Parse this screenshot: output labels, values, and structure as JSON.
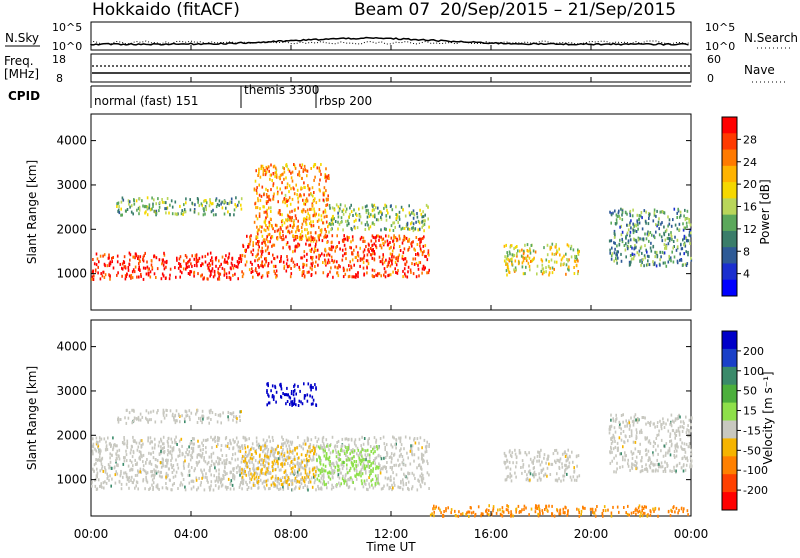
{
  "header": {
    "title": "Hokkaido (fitACF)",
    "beam": "Beam 07",
    "date_range": "20/Sep/2015 – 21/Sep/2015"
  },
  "top_panels": {
    "nsky_label": "N.Sky",
    "nsky_tick_hi": "10^5",
    "nsky_tick_lo": "10^0",
    "nsearch_label": "N.Search",
    "freq_label": "Freq.",
    "freq_unit": "[MHz]",
    "freq_tick_hi": "18",
    "freq_tick_lo": "8",
    "nave_label": "Nave",
    "nave_tick_hi": "60",
    "nave_tick_lo": "0",
    "cpid_label": "CPID",
    "cpid_segments": [
      {
        "label": "normal (fast) 151",
        "start_hour": 0
      },
      {
        "label": "themis 3300",
        "start_hour": 6
      },
      {
        "label": "rbsp 200",
        "start_hour": 9
      }
    ]
  },
  "power_panel": {
    "ylabel": "Slant Range [km]",
    "colorbar_label": "Power [dB]",
    "colorbar_ticks": [
      "28",
      "24",
      "20",
      "16",
      "12",
      "8",
      "4"
    ],
    "colorbar_colors": [
      "#ff0000",
      "#ff3a00",
      "#ff7a00",
      "#ffb300",
      "#f5d800",
      "#b9d65a",
      "#5ba85b",
      "#3a7d6a",
      "#2e5a96",
      "#1b2fcf",
      "#0000ff"
    ]
  },
  "velocity_panel": {
    "ylabel": "Slant Range [km]",
    "colorbar_label": "Velocity [m s⁻¹]",
    "colorbar_ticks": [
      "200",
      "100",
      "50",
      "15",
      "-15",
      "-50",
      "-100",
      "-200"
    ],
    "colorbar_colors": [
      "#0000c8",
      "#1a40c8",
      "#3a8a6a",
      "#4caf3c",
      "#8ee04a",
      "#c8c8c0",
      "#f5b400",
      "#ff8000",
      "#ff4000",
      "#ff0000"
    ],
    "ground_scatter_color": "#c8c8c0"
  },
  "chart_data": {
    "type": "heatmap",
    "x_range_hours": [
      0,
      24
    ],
    "xlabel": "Time UT",
    "x_ticks": [
      "00:00",
      "04:00",
      "08:00",
      "12:00",
      "16:00",
      "20:00",
      "00:00"
    ],
    "y_range_km": [
      180,
      4600
    ],
    "y_ticks": [
      1000,
      2000,
      3000,
      4000
    ],
    "power_scatter_regions": [
      {
        "t0": 0.0,
        "t1": 6.0,
        "r0": 900,
        "r1": 1500,
        "level": 28
      },
      {
        "t0": 6.0,
        "t1": 13.5,
        "r0": 950,
        "r1": 1900,
        "level": 26
      },
      {
        "t0": 6.5,
        "t1": 9.5,
        "r0": 1800,
        "r1": 3500,
        "level": 22
      },
      {
        "t0": 1.0,
        "t1": 6.0,
        "r0": 2350,
        "r1": 2750,
        "level": 14
      },
      {
        "t0": 9.5,
        "t1": 13.5,
        "r0": 2000,
        "r1": 2600,
        "level": 14
      },
      {
        "t0": 16.5,
        "t1": 19.5,
        "r0": 1000,
        "r1": 1700,
        "level": 18
      },
      {
        "t0": 20.7,
        "t1": 24.0,
        "r0": 1200,
        "r1": 2500,
        "level": 12
      }
    ],
    "velocity_scatter_regions": [
      {
        "t0": 0.0,
        "t1": 13.5,
        "r0": 800,
        "r1": 2000,
        "velocity": 0
      },
      {
        "t0": 6.0,
        "t1": 9.0,
        "r0": 900,
        "r1": 1800,
        "velocity": -50
      },
      {
        "t0": 9.0,
        "t1": 11.5,
        "r0": 900,
        "r1": 1800,
        "velocity": 15
      },
      {
        "t0": 7.0,
        "t1": 9.0,
        "r0": 2700,
        "r1": 3200,
        "velocity": 200
      },
      {
        "t0": 1.0,
        "t1": 6.0,
        "r0": 2300,
        "r1": 2600,
        "velocity": 0
      },
      {
        "t0": 16.5,
        "t1": 19.5,
        "r0": 1000,
        "r1": 1700,
        "velocity": 0
      },
      {
        "t0": 20.7,
        "t1": 24.0,
        "r0": 1200,
        "r1": 2500,
        "velocity": 0
      },
      {
        "t0": 13.5,
        "t1": 24.0,
        "r0": 200,
        "r1": 450,
        "velocity": -100
      }
    ]
  }
}
